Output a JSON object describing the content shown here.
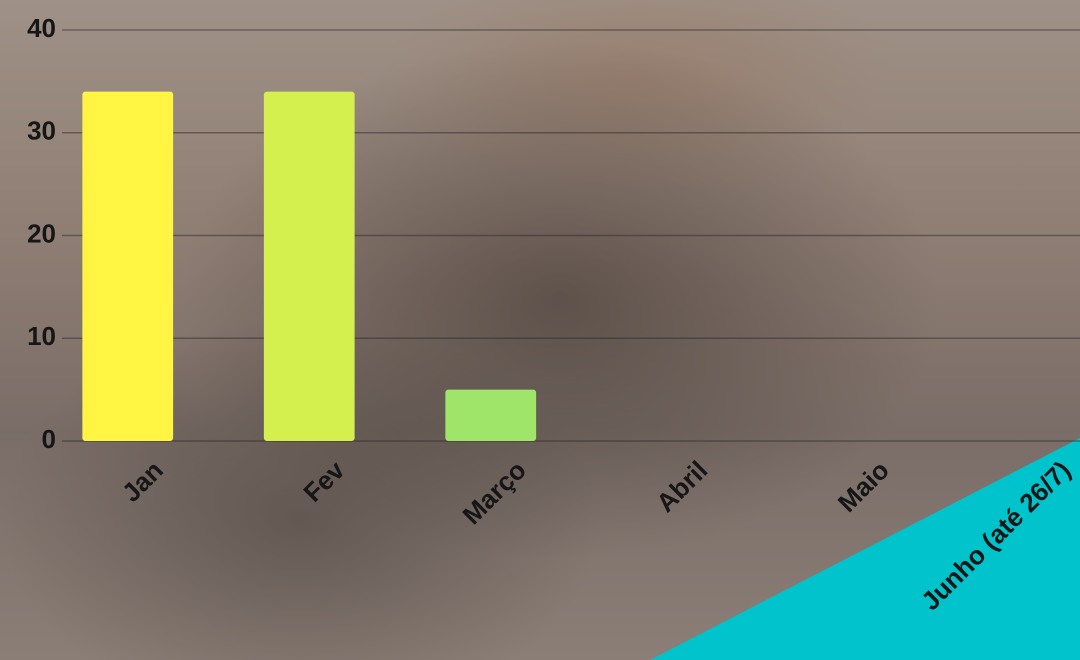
{
  "chart_data": {
    "type": "bar",
    "categories": [
      "Jan",
      "Fev",
      "Março",
      "Abril",
      "Maio",
      "Junho (até 26/7)"
    ],
    "values": [
      34,
      34,
      5,
      0,
      0,
      0
    ],
    "colors": [
      "#fff542",
      "#d3f04f",
      "#9fe56a",
      "#8fdc78",
      "#7fd486",
      "#6fcc94"
    ],
    "ylim": [
      0,
      40
    ],
    "yticks": [
      0,
      10,
      20,
      30,
      40
    ],
    "grid": true
  }
}
